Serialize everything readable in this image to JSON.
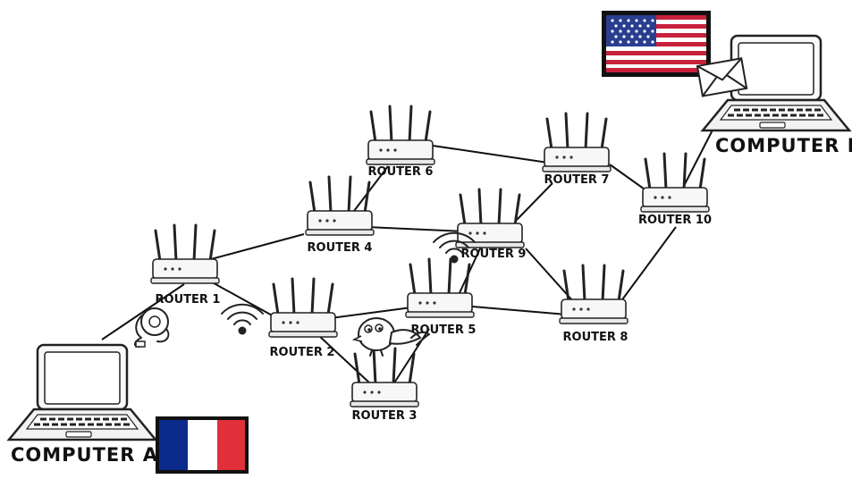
{
  "routers": [
    {
      "id": "r1",
      "label": "ROUTER 1"
    },
    {
      "id": "r2",
      "label": "ROUTER 2"
    },
    {
      "id": "r3",
      "label": "ROUTER 3"
    },
    {
      "id": "r4",
      "label": "ROUTER 4"
    },
    {
      "id": "r5",
      "label": "ROUTER 5"
    },
    {
      "id": "r6",
      "label": "ROUTER 6"
    },
    {
      "id": "r7",
      "label": "ROUTER 7"
    },
    {
      "id": "r8",
      "label": "ROUTER 8"
    },
    {
      "id": "r9",
      "label": "ROUTER 9"
    },
    {
      "id": "r10",
      "label": "ROUTER 10"
    }
  ],
  "computers": [
    {
      "id": "a",
      "label": "COMPUTER A",
      "flag": "france-flag"
    },
    {
      "id": "b",
      "label": "COMPUTER B",
      "flag": "usa-flag"
    }
  ],
  "connections": [
    [
      "a",
      "r1"
    ],
    [
      "r1",
      "r4"
    ],
    [
      "r1",
      "r2"
    ],
    [
      "r2",
      "r3"
    ],
    [
      "r2",
      "r5"
    ],
    [
      "r3",
      "r5"
    ],
    [
      "r4",
      "r6"
    ],
    [
      "r4",
      "r9"
    ],
    [
      "r6",
      "r7"
    ],
    [
      "r7",
      "r9"
    ],
    [
      "r7",
      "r10"
    ],
    [
      "r5",
      "r9"
    ],
    [
      "r5",
      "r8"
    ],
    [
      "r9",
      "r8"
    ],
    [
      "r8",
      "r10"
    ],
    [
      "r10",
      "b"
    ]
  ],
  "colors": {
    "france_blue": "#0a2a8c",
    "france_white": "#ffffff",
    "france_red": "#e0303a",
    "usa_red": "#c8213b",
    "usa_blue": "#2a3e8f",
    "line": "#111111"
  },
  "icons": [
    "wifi-icon",
    "envelope-icon",
    "cable-reel-icon",
    "bird-icon"
  ]
}
